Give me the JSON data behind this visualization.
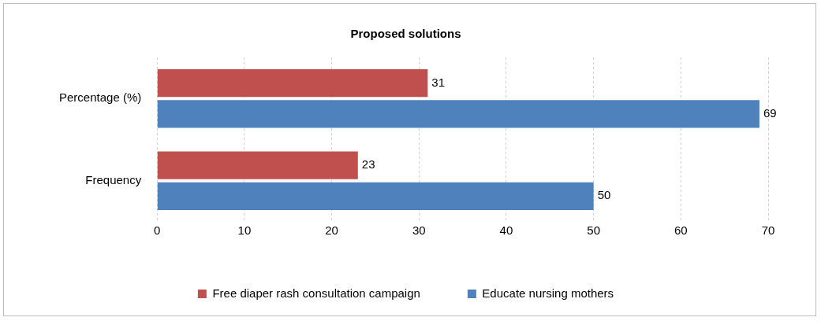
{
  "chart_data": {
    "type": "bar",
    "orientation": "horizontal",
    "title": "Proposed solutions",
    "categories": [
      "Percentage (%)",
      "Frequency"
    ],
    "series": [
      {
        "name": "Free diaper rash consultation campaign",
        "color": "#c0504d",
        "values": [
          31,
          23
        ]
      },
      {
        "name": "Educate nursing mothers",
        "color": "#4f81bd",
        "values": [
          69,
          50
        ]
      }
    ],
    "xlim": [
      0,
      70
    ],
    "xticks": [
      0,
      10,
      20,
      30,
      40,
      50,
      60,
      70
    ],
    "grid": "x",
    "legend": "bottom",
    "data_labels": true
  }
}
